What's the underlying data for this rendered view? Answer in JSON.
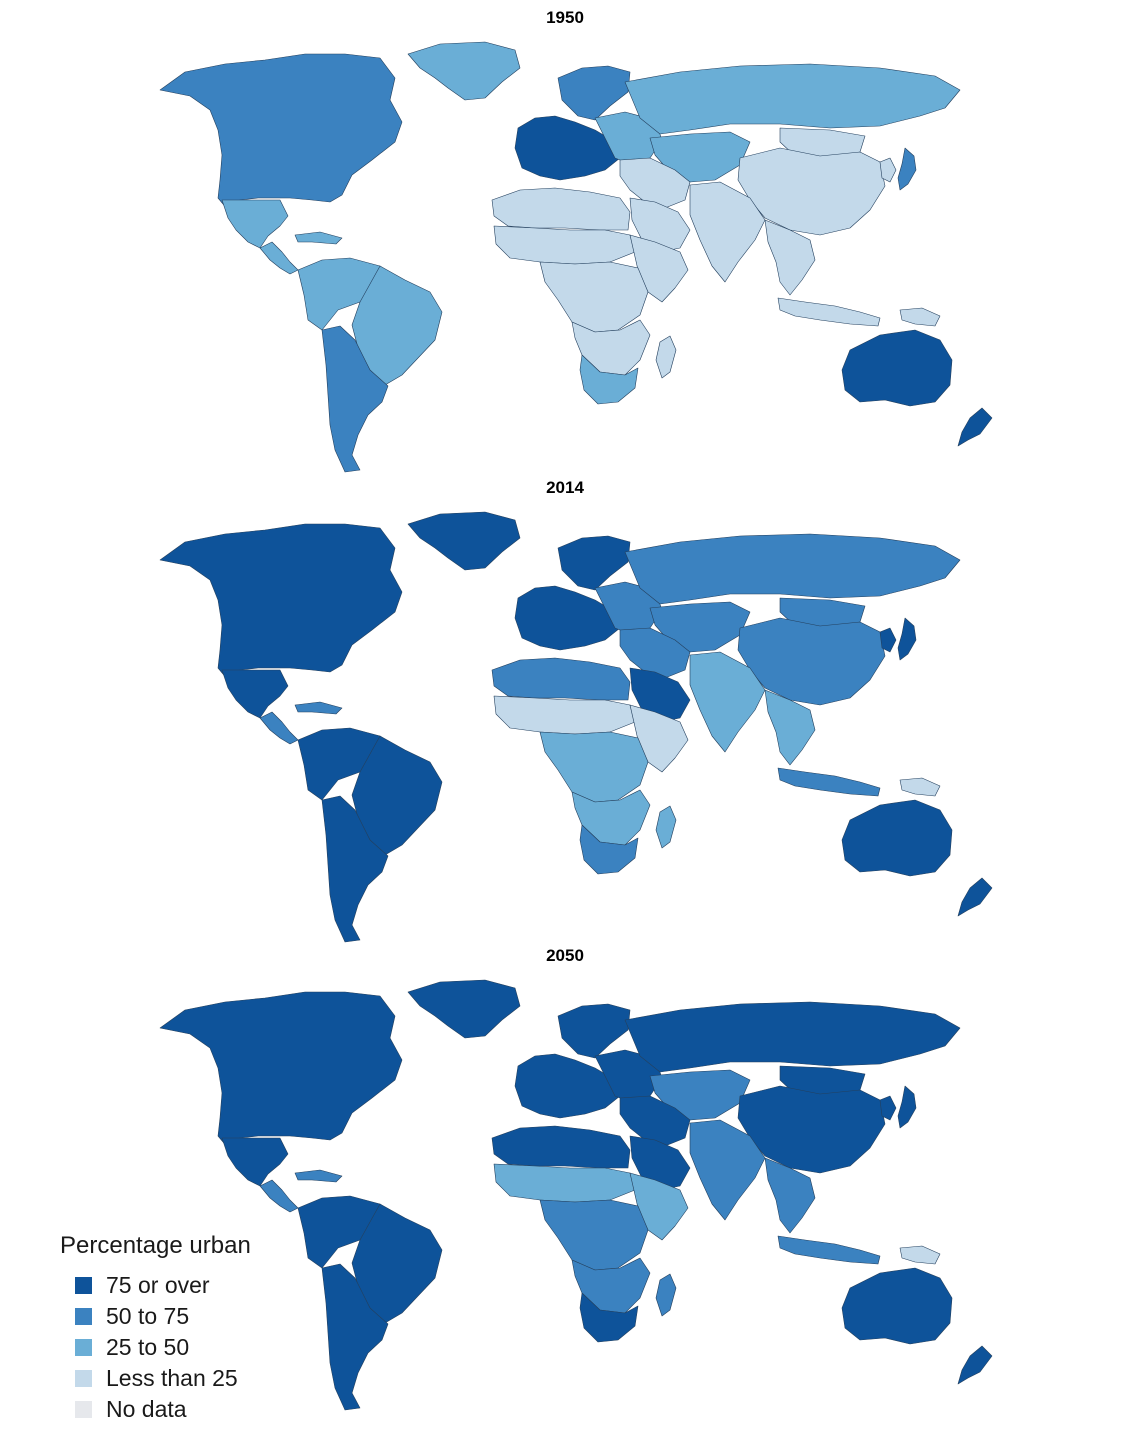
{
  "colors": {
    "c75": "#0e539a",
    "c50": "#3b82c0",
    "c25": "#6aaed6",
    "c0": "#c3d9ea",
    "nodata": "#e6e8ec",
    "border": "#24405e"
  },
  "maps": [
    {
      "year": "1950",
      "regions": {
        "north_america": "c50",
        "greenland": "c25",
        "mexico": "c25",
        "central_america": "c25",
        "caribbean": "c25",
        "south_america_north": "c25",
        "brazil": "c25",
        "south_america_south": "c50",
        "europe_west": "c75",
        "europe_east": "c25",
        "scandinavia": "c50",
        "russia": "c25",
        "central_asia": "c25",
        "middle_east": "c0",
        "arabia": "c0",
        "north_africa": "c0",
        "sahel": "c0",
        "central_africa": "c0",
        "east_africa": "c0",
        "southern_africa": "c0",
        "south_africa": "c25",
        "madagascar": "c0",
        "south_asia": "c0",
        "china": "c0",
        "mongolia": "c0",
        "japan": "c50",
        "korea": "c0",
        "southeast_asia": "c0",
        "indonesia": "c0",
        "png": "c0",
        "australia": "c75",
        "new_zealand": "c75"
      }
    },
    {
      "year": "2014",
      "regions": {
        "north_america": "c75",
        "greenland": "c75",
        "mexico": "c75",
        "central_america": "c50",
        "caribbean": "c50",
        "south_america_north": "c75",
        "brazil": "c75",
        "south_america_south": "c75",
        "europe_west": "c75",
        "europe_east": "c50",
        "scandinavia": "c75",
        "russia": "c50",
        "central_asia": "c50",
        "middle_east": "c50",
        "arabia": "c75",
        "north_africa": "c50",
        "sahel": "c0",
        "central_africa": "c25",
        "east_africa": "c0",
        "southern_africa": "c25",
        "south_africa": "c50",
        "madagascar": "c25",
        "south_asia": "c25",
        "china": "c50",
        "mongolia": "c50",
        "japan": "c75",
        "korea": "c75",
        "southeast_asia": "c25",
        "indonesia": "c50",
        "png": "c0",
        "australia": "c75",
        "new_zealand": "c75"
      }
    },
    {
      "year": "2050",
      "regions": {
        "north_america": "c75",
        "greenland": "c75",
        "mexico": "c75",
        "central_america": "c50",
        "caribbean": "c50",
        "south_america_north": "c75",
        "brazil": "c75",
        "south_america_south": "c75",
        "europe_west": "c75",
        "europe_east": "c75",
        "scandinavia": "c75",
        "russia": "c75",
        "central_asia": "c50",
        "middle_east": "c75",
        "arabia": "c75",
        "north_africa": "c75",
        "sahel": "c25",
        "central_africa": "c50",
        "east_africa": "c25",
        "southern_africa": "c50",
        "south_africa": "c75",
        "madagascar": "c50",
        "south_asia": "c50",
        "china": "c75",
        "mongolia": "c75",
        "japan": "c75",
        "korea": "c75",
        "southeast_asia": "c50",
        "indonesia": "c50",
        "png": "c0",
        "australia": "c75",
        "new_zealand": "c75"
      }
    }
  ],
  "legend": {
    "title": "Percentage urban",
    "items": [
      {
        "label": "75 or over",
        "color_key": "c75"
      },
      {
        "label": "50 to 75",
        "color_key": "c50"
      },
      {
        "label": "25 to 50",
        "color_key": "c25"
      },
      {
        "label": "Less than 25",
        "color_key": "c0"
      },
      {
        "label": "No data",
        "color_key": "nodata"
      }
    ]
  }
}
